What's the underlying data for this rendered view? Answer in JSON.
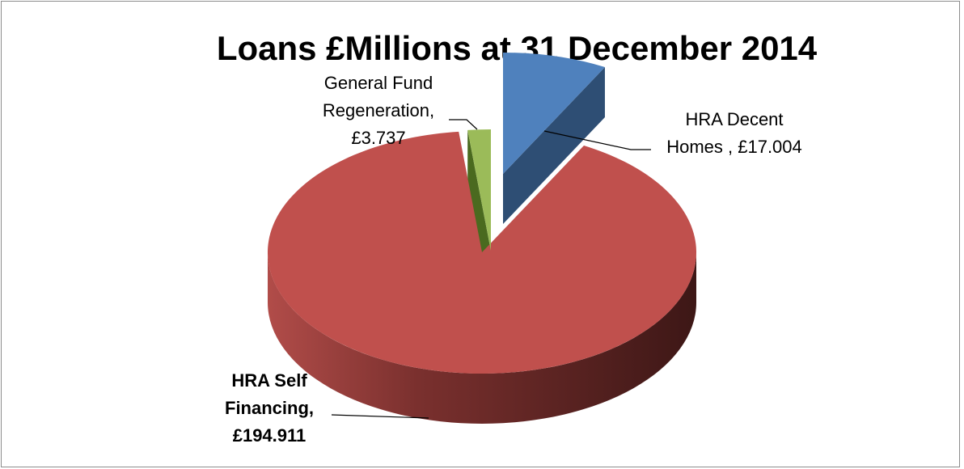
{
  "chart_data": {
    "type": "pie",
    "style": "3d-exploded",
    "title": "Loans £Millions at 31 December 2014",
    "slices": [
      {
        "name": "HRA Decent Homes",
        "value": 17.004,
        "color": "#4f81bd",
        "label_lines": [
          "HRA Decent",
          "Homes , £17.004"
        ],
        "bold": false
      },
      {
        "name": "HRA Self Financing",
        "value": 194.911,
        "color": "#c0504d",
        "label_lines": [
          "HRA Self",
          "Financing,",
          "£194.911"
        ],
        "bold": true
      },
      {
        "name": "General Fund Regeneration",
        "value": 3.737,
        "color": "#9bbb59",
        "label_lines": [
          "General Fund",
          "Regeneration,",
          "£3.737"
        ],
        "bold": false
      }
    ]
  }
}
